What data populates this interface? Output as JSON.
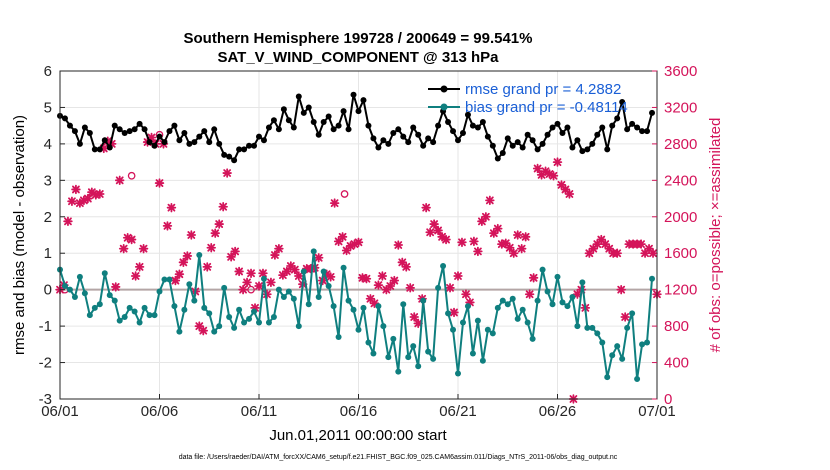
{
  "chart_data": {
    "type": "line",
    "title": "Southern Hemisphere 199728 / 200649 = 99.541%",
    "subtitle": "SAT_V_WIND_COMPONENT @ 313 hPa",
    "xlabel": "Jun.01,2011 00:00:00 start",
    "ylabel": "rmse and bias (model - observation)",
    "y2label": "# of obs: o=possible; ×=assimilated",
    "xlim": [
      0,
      30
    ],
    "ylim": [
      -3,
      6
    ],
    "y2lim": [
      0,
      3600
    ],
    "x_ticks": [
      0,
      5,
      10,
      15,
      20,
      25,
      30
    ],
    "x_tick_labels": [
      "06/01",
      "06/06",
      "06/11",
      "06/16",
      "06/21",
      "06/26",
      "07/01"
    ],
    "y_ticks": [
      -3,
      -2,
      -1,
      0,
      1,
      2,
      3,
      4,
      5,
      6
    ],
    "y2_ticks": [
      0,
      400,
      800,
      1200,
      1600,
      2000,
      2400,
      2800,
      3200,
      3600
    ],
    "colors": {
      "rmse": "#000000",
      "bias": "#0f7f7f",
      "obs": "#d4145a",
      "zero_line": "#b3a5a5",
      "legend_text": "#1a5fd6"
    },
    "legend": [
      {
        "series": "rmse",
        "label": "rmse grand pr = 4.2882"
      },
      {
        "series": "bias",
        "label": "bias grand pr = -0.48114"
      }
    ],
    "series": [
      {
        "name": "rmse",
        "x": [
          0.0,
          0.25,
          0.5,
          0.75,
          1.0,
          1.25,
          1.5,
          1.75,
          2.0,
          2.25,
          2.5,
          2.75,
          3.0,
          3.25,
          3.5,
          3.75,
          4.0,
          4.25,
          4.5,
          4.75,
          5.0,
          5.25,
          5.5,
          5.75,
          6.0,
          6.25,
          6.5,
          6.75,
          7.0,
          7.25,
          7.5,
          7.75,
          8.0,
          8.25,
          8.5,
          8.75,
          9.0,
          9.25,
          9.5,
          9.75,
          10.0,
          10.25,
          10.5,
          10.75,
          11.0,
          11.25,
          11.5,
          11.75,
          12.0,
          12.25,
          12.5,
          12.75,
          13.0,
          13.25,
          13.5,
          13.75,
          14.0,
          14.25,
          14.5,
          14.75,
          15.0,
          15.25,
          15.5,
          15.75,
          16.0,
          16.25,
          16.5,
          16.75,
          17.0,
          17.25,
          17.5,
          17.75,
          18.0,
          18.25,
          18.5,
          18.75,
          19.0,
          19.25,
          19.5,
          19.75,
          20.0,
          20.25,
          20.5,
          20.75,
          21.0,
          21.25,
          21.5,
          21.75,
          22.0,
          22.25,
          22.5,
          22.75,
          23.0,
          23.25,
          23.5,
          23.75,
          24.0,
          24.25,
          24.5,
          24.75,
          25.0,
          25.25,
          25.5,
          25.75,
          26.0,
          26.25,
          26.5,
          26.75,
          27.0,
          27.25,
          27.5,
          27.75,
          28.0,
          28.25,
          28.5,
          28.75,
          29.0,
          29.25,
          29.5,
          29.75
        ],
        "values": [
          4.77,
          4.7,
          4.5,
          4.35,
          4.0,
          4.45,
          4.3,
          3.85,
          3.85,
          4.1,
          3.9,
          4.5,
          4.4,
          4.3,
          4.35,
          4.4,
          4.55,
          4.4,
          4.05,
          3.95,
          4.2,
          4.05,
          4.35,
          4.5,
          4.1,
          4.3,
          4.0,
          4.05,
          4.2,
          4.35,
          4.05,
          4.4,
          4.0,
          3.7,
          3.65,
          3.55,
          3.85,
          3.85,
          3.95,
          3.95,
          4.2,
          4.1,
          4.45,
          4.65,
          4.4,
          4.95,
          4.65,
          4.45,
          5.3,
          4.85,
          5.0,
          4.6,
          4.25,
          4.6,
          4.75,
          4.4,
          4.5,
          4.9,
          4.4,
          5.35,
          4.9,
          5.2,
          4.5,
          4.15,
          3.9,
          4.1,
          4.0,
          4.3,
          4.4,
          4.2,
          4.05,
          4.45,
          4.25,
          3.95,
          4.15,
          4.05,
          4.5,
          4.9,
          4.6,
          4.35,
          4.1,
          4.3,
          4.8,
          4.5,
          4.45,
          4.6,
          4.2,
          3.95,
          3.6,
          3.75,
          4.15,
          3.95,
          4.05,
          3.9,
          4.25,
          4.1,
          3.85,
          4.0,
          4.25,
          4.45,
          4.55,
          4.3,
          4.45,
          3.9,
          4.1,
          3.8,
          3.85,
          4.0,
          4.25,
          4.45,
          3.85,
          4.5,
          4.7,
          5.15,
          4.4,
          4.55,
          4.45,
          4.35,
          4.35,
          4.85
        ]
      },
      {
        "name": "bias",
        "x": [
          0.0,
          0.25,
          0.5,
          0.75,
          1.0,
          1.25,
          1.5,
          1.75,
          2.0,
          2.25,
          2.5,
          2.75,
          3.0,
          3.25,
          3.5,
          3.75,
          4.0,
          4.25,
          4.5,
          4.75,
          5.0,
          5.25,
          5.5,
          5.75,
          6.0,
          6.25,
          6.5,
          6.75,
          7.0,
          7.25,
          7.5,
          7.75,
          8.0,
          8.25,
          8.5,
          8.75,
          9.0,
          9.25,
          9.5,
          9.75,
          10.0,
          10.25,
          10.5,
          10.75,
          11.0,
          11.25,
          11.5,
          11.75,
          12.0,
          12.25,
          12.5,
          12.75,
          13.0,
          13.25,
          13.5,
          13.75,
          14.0,
          14.25,
          14.5,
          14.75,
          15.0,
          15.25,
          15.5,
          15.75,
          16.0,
          16.25,
          16.5,
          16.75,
          17.0,
          17.25,
          17.5,
          17.75,
          18.0,
          18.25,
          18.5,
          18.75,
          19.0,
          19.25,
          19.5,
          19.75,
          20.0,
          20.25,
          20.5,
          20.75,
          21.0,
          21.25,
          21.5,
          21.75,
          22.0,
          22.25,
          22.5,
          22.75,
          23.0,
          23.25,
          23.5,
          23.75,
          24.0,
          24.25,
          24.5,
          24.75,
          25.0,
          25.25,
          25.5,
          25.75,
          26.0,
          26.25,
          26.5,
          26.75,
          27.0,
          27.25,
          27.5,
          27.75,
          28.0,
          28.25,
          28.5,
          28.75,
          29.0,
          29.25,
          29.5,
          29.75
        ],
        "values": [
          0.55,
          0.1,
          0.0,
          -0.2,
          0.35,
          -0.1,
          -0.7,
          -0.5,
          -0.4,
          0.45,
          -0.15,
          -0.3,
          -0.85,
          -0.75,
          -0.5,
          -0.6,
          -0.9,
          -0.5,
          -0.7,
          -0.7,
          -0.05,
          0.28,
          0.28,
          -0.45,
          -1.15,
          -0.55,
          0.15,
          -0.3,
          0.95,
          -0.5,
          -0.65,
          -1.15,
          -1.0,
          0.05,
          -0.75,
          -1.05,
          -0.55,
          -0.9,
          -0.8,
          -0.6,
          -0.9,
          0.3,
          -0.9,
          -0.75,
          0.0,
          -0.2,
          -0.05,
          -0.25,
          -1.0,
          0.5,
          -0.4,
          1.05,
          -0.2,
          0.5,
          0.1,
          -0.45,
          -1.3,
          0.6,
          -0.3,
          -0.55,
          -1.1,
          -0.5,
          -1.45,
          -1.75,
          -0.45,
          -1.0,
          -1.85,
          -1.35,
          -2.25,
          -0.4,
          -1.85,
          -1.55,
          -2.1,
          -0.3,
          -1.7,
          -1.9,
          0.05,
          0.65,
          -0.65,
          -1.1,
          -2.3,
          -0.9,
          -0.45,
          -1.75,
          -0.85,
          -1.95,
          -1.1,
          -1.2,
          -0.5,
          -0.3,
          -0.4,
          -0.25,
          -0.8,
          -0.55,
          -0.9,
          -1.35,
          -0.3,
          0.55,
          -0.05,
          -0.4,
          0.35,
          -0.35,
          -0.45,
          -0.2,
          -1.0,
          0.2,
          -1.05,
          -1.05,
          -1.2,
          -1.45,
          -2.4,
          -1.8,
          -1.55,
          -1.9,
          -1.05,
          -0.65,
          -2.45,
          -1.5,
          -1.45,
          0.3
        ]
      },
      {
        "name": "obs_possible",
        "x": [
          0.25,
          3.6,
          5.0,
          9.6,
          14.3
        ],
        "values": [
          1200,
          2450,
          2900,
          1200,
          2250
        ]
      },
      {
        "name": "obs_assimilated",
        "x": [
          0.0,
          0.2,
          0.4,
          0.6,
          0.8,
          1.0,
          1.2,
          1.4,
          1.6,
          1.8,
          2.0,
          2.2,
          2.4,
          2.6,
          2.8,
          3.0,
          3.2,
          3.4,
          3.6,
          3.8,
          4.0,
          4.2,
          4.4,
          4.6,
          4.8,
          5.0,
          5.2,
          5.4,
          5.6,
          5.8,
          6.0,
          6.2,
          6.4,
          6.6,
          6.8,
          7.0,
          7.2,
          7.4,
          7.6,
          7.8,
          8.0,
          8.2,
          8.4,
          8.6,
          8.8,
          9.0,
          9.2,
          9.4,
          9.6,
          9.8,
          10.0,
          10.2,
          10.4,
          10.6,
          10.8,
          11.0,
          11.2,
          11.4,
          11.6,
          11.8,
          12.0,
          12.2,
          12.4,
          12.6,
          12.8,
          13.0,
          13.2,
          13.4,
          13.6,
          13.8,
          14.0,
          14.2,
          14.4,
          14.6,
          14.8,
          15.0,
          15.2,
          15.4,
          15.6,
          15.8,
          16.0,
          16.2,
          16.4,
          16.6,
          16.8,
          17.0,
          17.2,
          17.4,
          17.6,
          17.8,
          18.0,
          18.2,
          18.4,
          18.6,
          18.8,
          19.0,
          19.2,
          19.4,
          19.6,
          19.8,
          20.0,
          20.2,
          20.4,
          20.6,
          20.8,
          21.0,
          21.2,
          21.4,
          21.6,
          21.8,
          22.0,
          22.2,
          22.4,
          22.6,
          22.8,
          23.0,
          23.2,
          23.4,
          23.6,
          23.8,
          24.0,
          24.2,
          24.4,
          24.6,
          24.8,
          25.0,
          25.2,
          25.4,
          25.6,
          25.8,
          26.0,
          26.2,
          26.4,
          26.6,
          26.8,
          27.0,
          27.2,
          27.4,
          27.6,
          27.8,
          28.0,
          28.2,
          28.4,
          28.6,
          28.8,
          29.0,
          29.2,
          29.4,
          29.6,
          29.8,
          30.0
        ],
        "values": [
          1200,
          1250,
          1950,
          2170,
          2300,
          2150,
          2180,
          2200,
          2270,
          2240,
          2250,
          2750,
          2830,
          2800,
          1230,
          2400,
          1650,
          1770,
          1750,
          1350,
          1450,
          1650,
          2820,
          2870,
          2800,
          2370,
          2800,
          1900,
          2100,
          1300,
          1370,
          1500,
          1570,
          1800,
          1180,
          800,
          750,
          1450,
          1660,
          1820,
          1920,
          2110,
          2480,
          1560,
          1620,
          1400,
          1200,
          1280,
          1380,
          1000,
          1240,
          1380,
          1150,
          1280,
          1580,
          1650,
          1360,
          1400,
          1460,
          1420,
          1350,
          1260,
          1430,
          1430,
          1440,
          1550,
          1300,
          1370,
          1340,
          2150,
          1730,
          1780,
          1630,
          1680,
          1700,
          1720,
          1330,
          1320,
          1100,
          1050,
          1250,
          1350,
          1200,
          1240,
          1300,
          1690,
          1500,
          1450,
          1220,
          900,
          830,
          1100,
          2100,
          1830,
          1920,
          1850,
          1780,
          1750,
          1220,
          950,
          1350,
          1720,
          1150,
          1060,
          1730,
          1620,
          1950,
          2000,
          2180,
          1820,
          1870,
          1700,
          1710,
          1660,
          1600,
          1800,
          1650,
          1780,
          1150,
          1330,
          2530,
          2460,
          2500,
          2470,
          2450,
          2600,
          2350,
          2300,
          2250,
          0,
          1150,
          1200,
          1000,
          1600,
          1650,
          1700,
          1750,
          1700,
          1650,
          1600,
          1600,
          1200,
          900,
          1700,
          1700,
          1700,
          1700,
          1600,
          1650,
          1600,
          1150
        ]
      }
    ]
  },
  "footer": "data file: /Users/raeder/DAI/ATM_forcXX/CAM6_setup/f.e21.FHIST_BGC.f09_025.CAM6assim.011/Diags_NTrS_2011-06/obs_diag_output.nc"
}
